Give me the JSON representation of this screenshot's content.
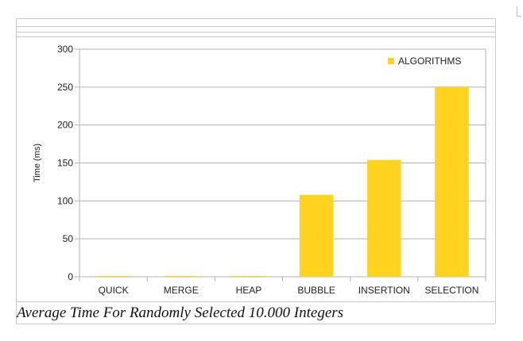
{
  "chart_data": {
    "type": "bar",
    "categories": [
      "QUICK",
      "MERGE",
      "HEAP",
      "BUBBLE",
      "INSERTION",
      "SELECTION"
    ],
    "series": [
      {
        "name": "ALGORITHMS",
        "values": [
          0.5,
          0.5,
          0.5,
          108,
          154,
          250
        ]
      }
    ],
    "ylabel": "Time (ms)",
    "xlabel": "",
    "ylim": [
      0,
      300
    ],
    "yticks": [
      0,
      50,
      100,
      150,
      200,
      250,
      300
    ],
    "grid": true,
    "legend": "top-right",
    "bar_color": "#ffd320"
  },
  "caption": "Average Time For Randomly Selected 10.000 Integers"
}
